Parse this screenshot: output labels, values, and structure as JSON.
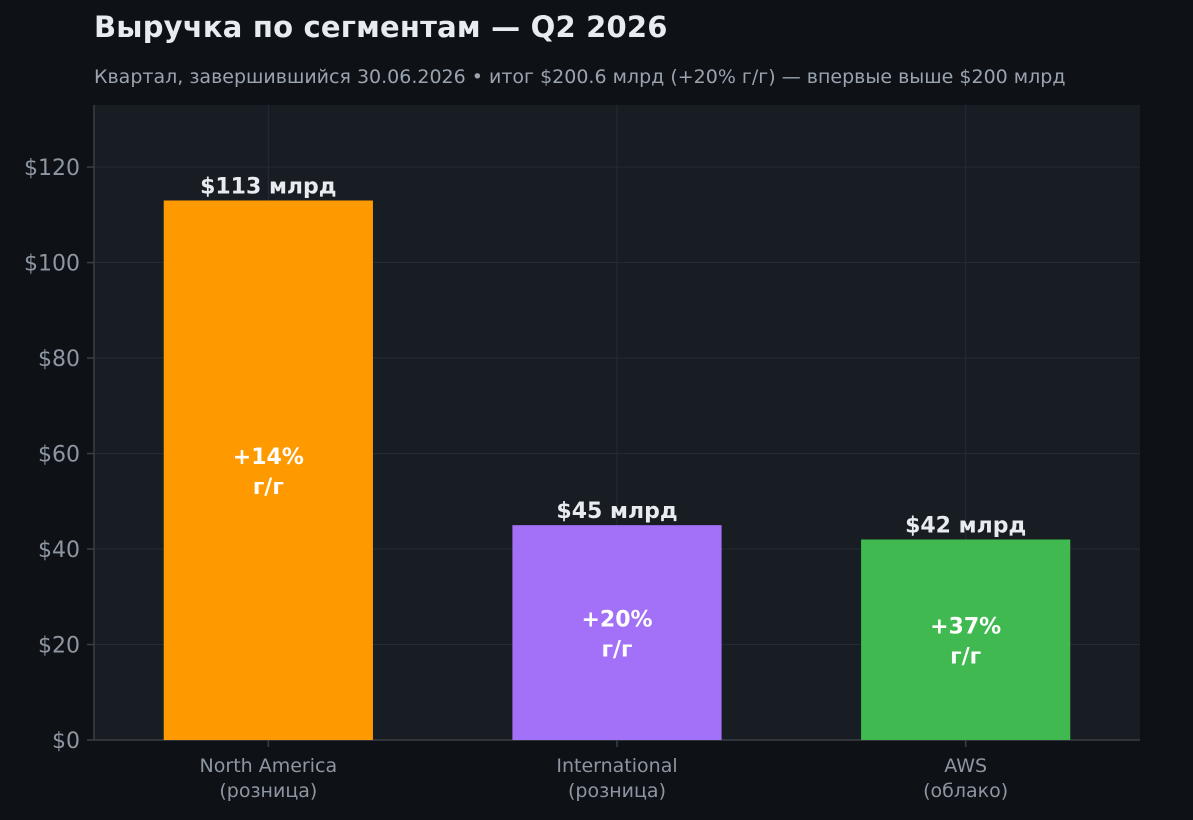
{
  "title": "Выручка по сегментам — Q2 2026",
  "subtitle": "Квартал, завершившийся 30.06.2026  •  итог $200.6 млрд (+20% г/г) — впервые выше $200 млрд",
  "colors": {
    "background": "#0e1217",
    "plot_background": "#181c23",
    "grid": "#262b33",
    "axis": "#3a3f47",
    "tick_text": "#8e96a1",
    "label_text": "#e8ecf1"
  },
  "chart_data": {
    "type": "bar",
    "categories": [
      [
        "North America",
        "(розница)"
      ],
      [
        "International",
        "(розница)"
      ],
      [
        "AWS",
        "(облако)"
      ]
    ],
    "values": [
      113,
      45,
      42
    ],
    "value_labels": [
      "$113 млрд",
      "$45 млрд",
      "$42 млрд"
    ],
    "growth_labels": [
      [
        "+14%",
        "г/г"
      ],
      [
        "+20%",
        "г/г"
      ],
      [
        "+37%",
        "г/г"
      ]
    ],
    "bar_colors": [
      "#ff9900",
      "#a371f7",
      "#3fb950"
    ],
    "ylim": [
      0,
      133
    ],
    "yticks": [
      0,
      20,
      40,
      60,
      80,
      100,
      120
    ],
    "ytick_labels": [
      "$0",
      "$20",
      "$40",
      "$60",
      "$80",
      "$100",
      "$120"
    ],
    "grid": true,
    "xlabel": "",
    "ylabel": ""
  }
}
